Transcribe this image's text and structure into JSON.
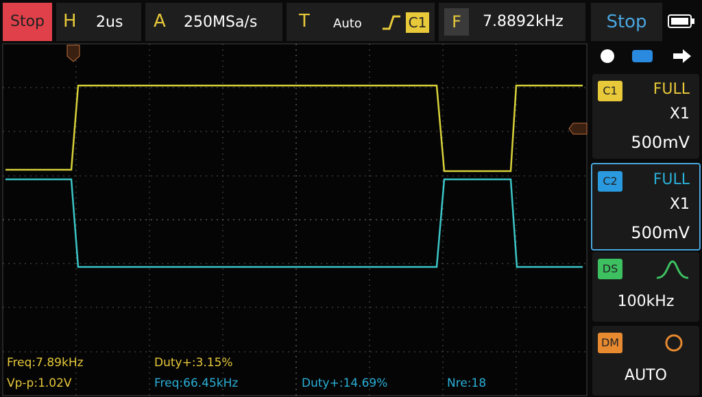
{
  "top_bar": {
    "run_state": "Stop",
    "horizontal": {
      "label": "H",
      "value": "2us"
    },
    "acquisition": {
      "label": "A",
      "value": "250MSa/s"
    },
    "trigger": {
      "label": "T",
      "mode": "Auto",
      "source": "C1"
    },
    "frequency": {
      "label": "F",
      "value": "7.8892kHz"
    },
    "status": "Stop"
  },
  "channels": [
    {
      "id": "C1",
      "coupling": "FULL",
      "probe": "X1",
      "scale": "500mV"
    },
    {
      "id": "C2",
      "coupling": "FULL",
      "probe": "X1",
      "scale": "500mV"
    }
  ],
  "ds": {
    "label": "DS",
    "value": "100kHz"
  },
  "dm": {
    "label": "DM",
    "value": "AUTO"
  },
  "measurements": [
    "Freq:7.89kHz",
    "Duty+:3.15%",
    "Vp-p:1.02V",
    "Freq:66.45kHz",
    "Duty+:14.69%",
    "Nre:18"
  ]
}
